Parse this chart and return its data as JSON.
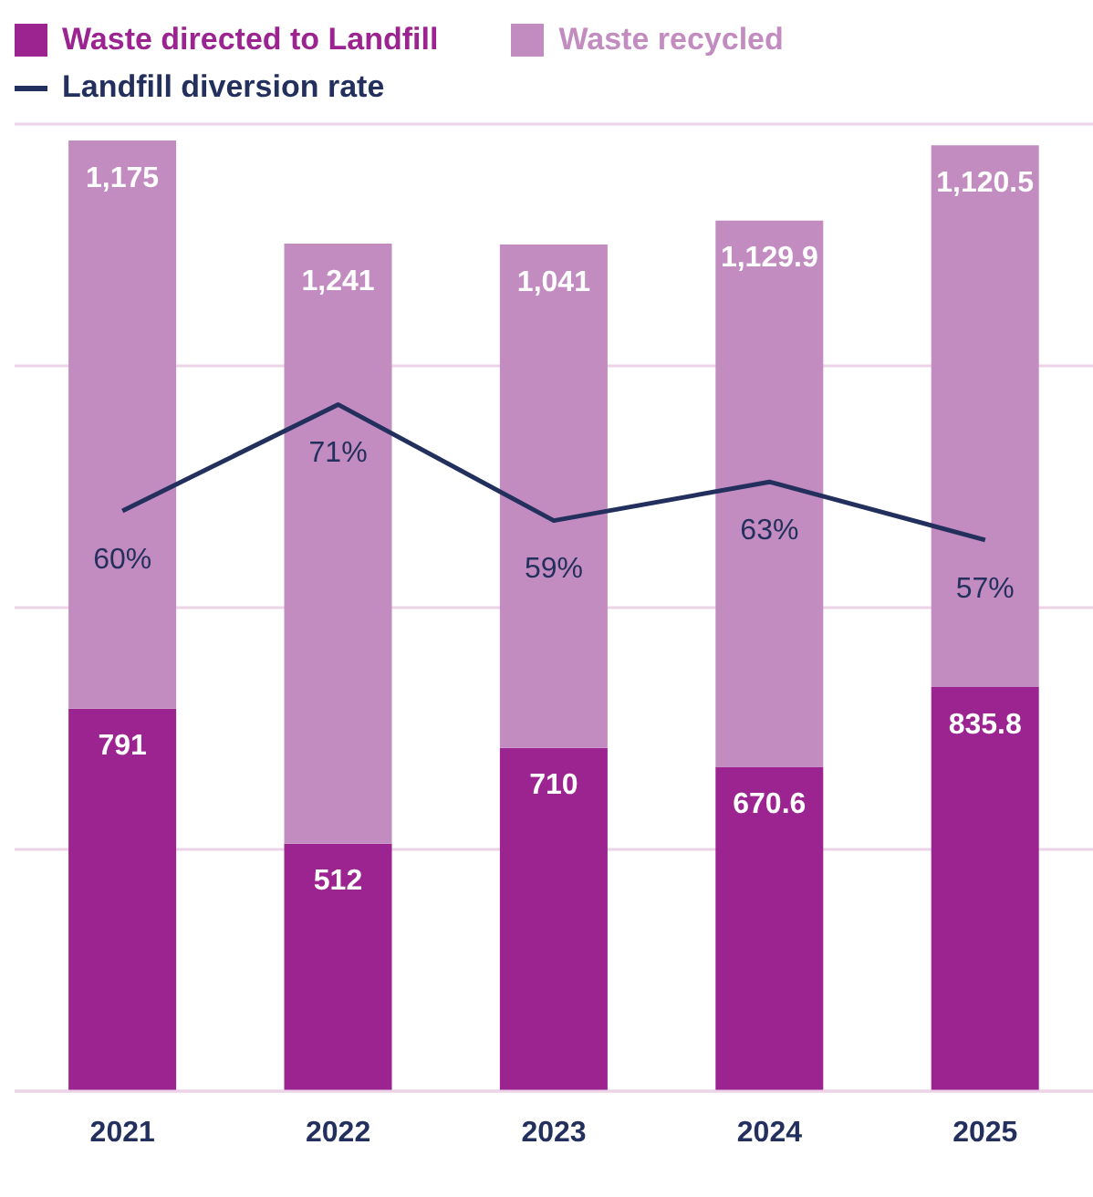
{
  "chart_data": {
    "type": "bar",
    "stacked": true,
    "categories": [
      "2021",
      "2022",
      "2023",
      "2024",
      "2025"
    ],
    "ylim": [
      0,
      2000
    ],
    "yticks": [
      {
        "value": 0,
        "label": null
      },
      {
        "value": 500,
        "label": null
      },
      {
        "value": 1000,
        "label": null
      },
      {
        "value": 1500,
        "label": null
      }
    ],
    "y2lim": [
      0,
      100
    ],
    "tick_labels": "x",
    "grid": "y",
    "legend": "top left",
    "series": [
      {
        "name": "Waste directed to Landfill",
        "color": "#9b2490",
        "values": [
          791,
          512,
          710,
          670.6,
          835.8
        ],
        "value_labels": [
          "791",
          "512",
          "710",
          "670.6",
          "835.8"
        ]
      },
      {
        "name": "Waste recycled",
        "color": "#c38cc0",
        "values": [
          1175,
          1241,
          1041,
          1129.9,
          1120.5
        ],
        "value_labels": [
          "1,175",
          "1,241",
          "1,041",
          "1,129.9",
          "1,120.5"
        ]
      },
      {
        "name": "Landfill diversion rate",
        "type": "line",
        "axis": "y2",
        "marker": "none",
        "line_style": "solid",
        "color": "#23305e",
        "values": [
          60,
          71,
          59,
          63,
          57
        ],
        "value_labels": [
          "60%",
          "71%",
          "59%",
          "63%",
          "57%"
        ]
      }
    ]
  }
}
